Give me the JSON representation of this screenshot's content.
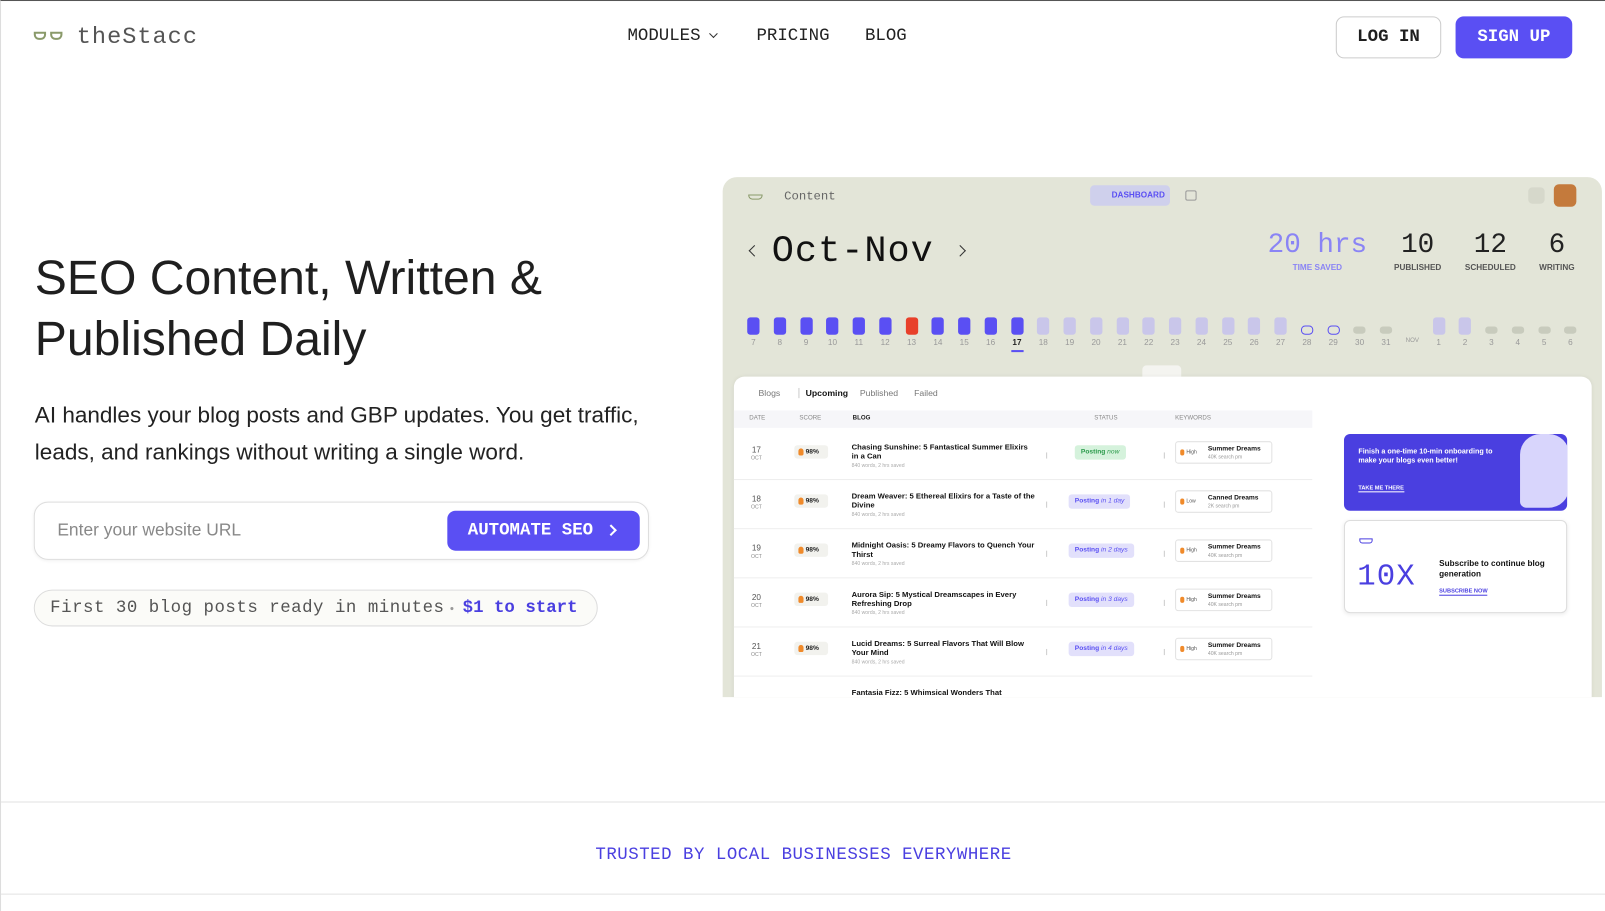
{
  "nav": {
    "logo": "theStacc",
    "links": [
      "MODULES",
      "PRICING",
      "BLOG"
    ],
    "login": "LOG IN",
    "signup": "SIGN UP"
  },
  "hero": {
    "title": "SEO Content, Written & Published Daily",
    "subtitle": "AI handles your blog posts and GBP updates. You get traffic, leads, and rankings without writing a single word.",
    "input_placeholder": "Enter your website URL",
    "cta": "AUTOMATE SEO",
    "note": "First 30 blog posts ready in minutes",
    "note_price": "$1 to start"
  },
  "dashboard": {
    "breadcrumb": "Content",
    "view": "DASHBOARD",
    "period": "Oct-Nov",
    "stats": [
      {
        "value": "20 hrs",
        "label": "TIME SAVED",
        "color": "#8a84f5"
      },
      {
        "value": "10",
        "label": "PUBLISHED",
        "color": "#222222"
      },
      {
        "value": "12",
        "label": "SCHEDULED",
        "color": "#222222"
      },
      {
        "value": "6",
        "label": "WRITING",
        "color": "#222222"
      }
    ],
    "days": [
      {
        "label": "7",
        "color": "#5a4ff3",
        "shape": "bar"
      },
      {
        "label": "8",
        "color": "#5a4ff3",
        "shape": "bar"
      },
      {
        "label": "9",
        "color": "#5a4ff3",
        "shape": "bar"
      },
      {
        "label": "10",
        "color": "#5a4ff3",
        "shape": "bar"
      },
      {
        "label": "11",
        "color": "#5a4ff3",
        "shape": "bar"
      },
      {
        "label": "12",
        "color": "#5a4ff3",
        "shape": "bar"
      },
      {
        "label": "13",
        "color": "#e8402a",
        "shape": "bar"
      },
      {
        "label": "14",
        "color": "#5a4ff3",
        "shape": "bar"
      },
      {
        "label": "15",
        "color": "#5a4ff3",
        "shape": "bar"
      },
      {
        "label": "16",
        "color": "#5a4ff3",
        "shape": "bar"
      },
      {
        "label": "17",
        "color": "#5a4ff3",
        "shape": "bar",
        "selected": true
      },
      {
        "label": "18",
        "color": "#c9c6ea",
        "shape": "bar"
      },
      {
        "label": "19",
        "color": "#c9c6ea",
        "shape": "bar"
      },
      {
        "label": "20",
        "color": "#c9c6ea",
        "shape": "bar"
      },
      {
        "label": "21",
        "color": "#c9c6ea",
        "shape": "bar"
      },
      {
        "label": "22",
        "color": "#c9c6ea",
        "shape": "bar"
      },
      {
        "label": "23",
        "color": "#c9c6ea",
        "shape": "bar"
      },
      {
        "label": "24",
        "color": "#c9c6ea",
        "shape": "bar"
      },
      {
        "label": "25",
        "color": "#c9c6ea",
        "shape": "bar"
      },
      {
        "label": "26",
        "color": "#c9c6ea",
        "shape": "bar"
      },
      {
        "label": "27",
        "color": "#c9c6ea",
        "shape": "bar"
      },
      {
        "label": "28",
        "color": "#5a4ff3",
        "shape": "ring"
      },
      {
        "label": "29",
        "color": "#5a4ff3",
        "shape": "ring"
      },
      {
        "label": "30",
        "color": "#c8cbbd",
        "shape": "dot"
      },
      {
        "label": "31",
        "color": "#c8cbbd",
        "shape": "dot"
      },
      {
        "label": "NOV"
      },
      {
        "label": "1",
        "color": "#c9c6ea",
        "shape": "bar"
      },
      {
        "label": "2",
        "color": "#c9c6ea",
        "shape": "bar"
      },
      {
        "label": "3",
        "color": "#c8cbbd",
        "shape": "dot"
      },
      {
        "label": "4",
        "color": "#c8cbbd",
        "shape": "dot"
      },
      {
        "label": "5",
        "color": "#c8cbbd",
        "shape": "dot"
      },
      {
        "label": "6",
        "color": "#c8cbbd",
        "shape": "dot"
      }
    ],
    "tabs": [
      "Blogs",
      "Upcoming",
      "Published",
      "Failed"
    ],
    "columns": [
      "DATE",
      "SCORE",
      "BLOG",
      "STATUS",
      "KEYWORDS"
    ],
    "rows": [
      {
        "day": "17",
        "month": "OCT",
        "score": "98%",
        "title": "Chasing Sunshine: 5 Fantastical Summer Elixirs in a Can",
        "meta": "840 words, 2 hrs saved",
        "status": "Posting",
        "when": "now",
        "status_color": "#d5f2dc",
        "level": "High",
        "keyword": "Summer Dreams",
        "volume": "40K search pm"
      },
      {
        "day": "18",
        "month": "OCT",
        "score": "98%",
        "title": "Dream Weaver: 5 Ethereal Elixirs for a Taste of the Divine",
        "meta": "840 words, 2 hrs saved",
        "status": "Posting",
        "when": "in 1 day",
        "status_color": "#e2e0fb",
        "level": "Low",
        "keyword": "Canned Dreams",
        "volume": "2K search pm"
      },
      {
        "day": "19",
        "month": "OCT",
        "score": "98%",
        "title": "Midnight Oasis: 5 Dreamy Flavors to Quench Your Thirst",
        "meta": "840 words, 2 hrs saved",
        "status": "Posting",
        "when": "in 2 days",
        "status_color": "#e2e0fb",
        "level": "High",
        "keyword": "Summer Dreams",
        "volume": "40K search pm"
      },
      {
        "day": "20",
        "month": "OCT",
        "score": "98%",
        "title": "Aurora Sip: 5 Mystical Dreamscapes in Every Refreshing Drop",
        "meta": "840 words, 2 hrs saved",
        "status": "Posting",
        "when": "in 3 days",
        "status_color": "#e2e0fb",
        "level": "High",
        "keyword": "Summer Dreams",
        "volume": "40K search pm"
      },
      {
        "day": "21",
        "month": "OCT",
        "score": "98%",
        "title": "Lucid Dreams: 5 Surreal Flavors That Will Blow Your Mind",
        "meta": "840 words, 2 hrs saved",
        "status": "Posting",
        "when": "in 4 days",
        "status_color": "#e2e0fb",
        "level": "High",
        "keyword": "Summer Dreams",
        "volume": "40K search pm"
      },
      {
        "title": "Fantasia Fizz: 5 Whimsical Wonders That"
      }
    ],
    "promo": {
      "text": "Finish a one-time 10-min onboarding to make your blogs even better!",
      "link": "TAKE ME THERE"
    },
    "subscribe": {
      "big": "10X",
      "text": "Subscribe to continue blog generation",
      "link": "SUBSCRIBE NOW"
    }
  },
  "trusted": "TRUSTED BY LOCAL BUSINESSES EVERYWHERE"
}
